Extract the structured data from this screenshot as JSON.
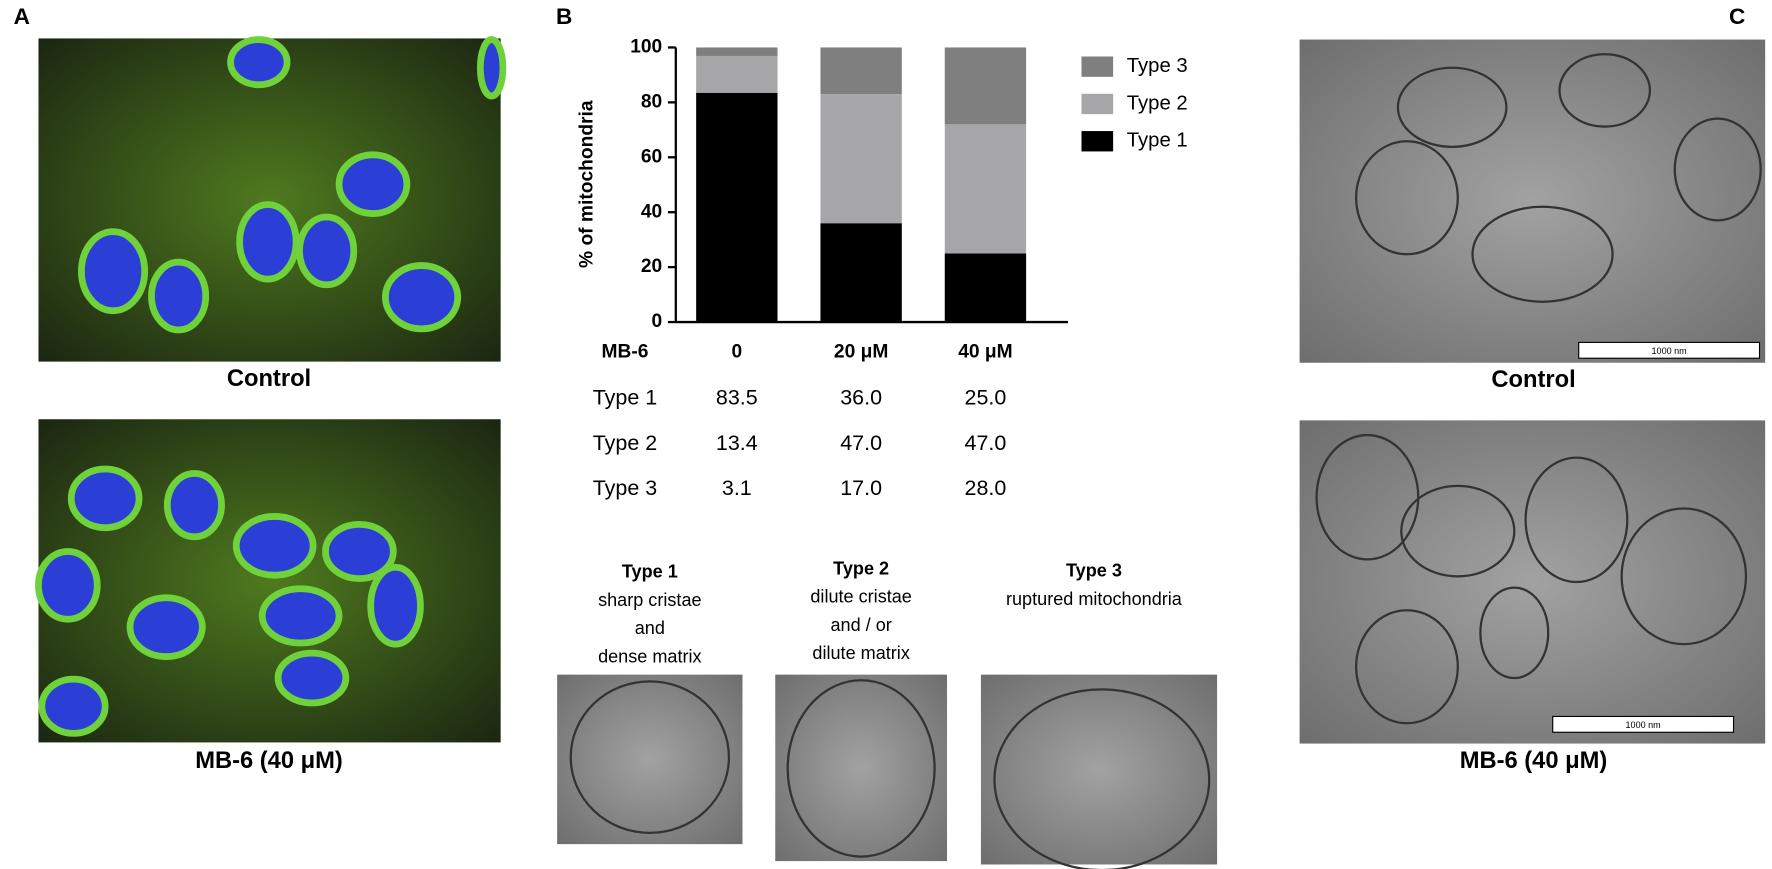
{
  "panel_labels": [
    "A",
    "B",
    "C"
  ],
  "panel_a": {
    "captions": [
      "Control",
      "MB-6 (40 μM)"
    ]
  },
  "chart_data": {
    "type": "bar",
    "stacked": true,
    "ylabel": "% of mitochondria",
    "xlabel": "MB-6",
    "categories": [
      "0",
      "20 μM",
      "40 μM"
    ],
    "series": [
      {
        "name": "Type 1",
        "color": "#000000",
        "values": [
          83.5,
          36,
          25
        ],
        "value_labels": [
          "83.5",
          "36.0",
          "25.0"
        ]
      },
      {
        "name": "Type 2",
        "color": "#a6a6a8",
        "values": [
          13.4,
          47,
          47
        ],
        "value_labels": [
          "13.4",
          "47.0",
          "47.0"
        ]
      },
      {
        "name": "Type 3",
        "color": "#7f7f7f",
        "values": [
          3.1,
          17,
          28
        ],
        "value_labels": [
          "3.1",
          "17.0",
          "28.0"
        ]
      }
    ],
    "ylim": [
      0,
      100
    ],
    "yticks": [
      0,
      20,
      40,
      60,
      80,
      100
    ],
    "grid": false,
    "legend": "right"
  },
  "type_descriptions": [
    {
      "title": "Type 1",
      "lines": [
        "sharp cristae",
        "and",
        "dense matrix"
      ]
    },
    {
      "title": "Type 2",
      "lines": [
        "dilute cristae",
        "and / or",
        "dilute matrix"
      ]
    },
    {
      "title": "Type 3",
      "lines": [
        "ruptured mitochondria"
      ]
    }
  ],
  "panel_c": {
    "captions": [
      "Control",
      "MB-6 (40 μM)"
    ],
    "scale_bar_labels": [
      "1000 nm",
      "1000 nm"
    ]
  }
}
